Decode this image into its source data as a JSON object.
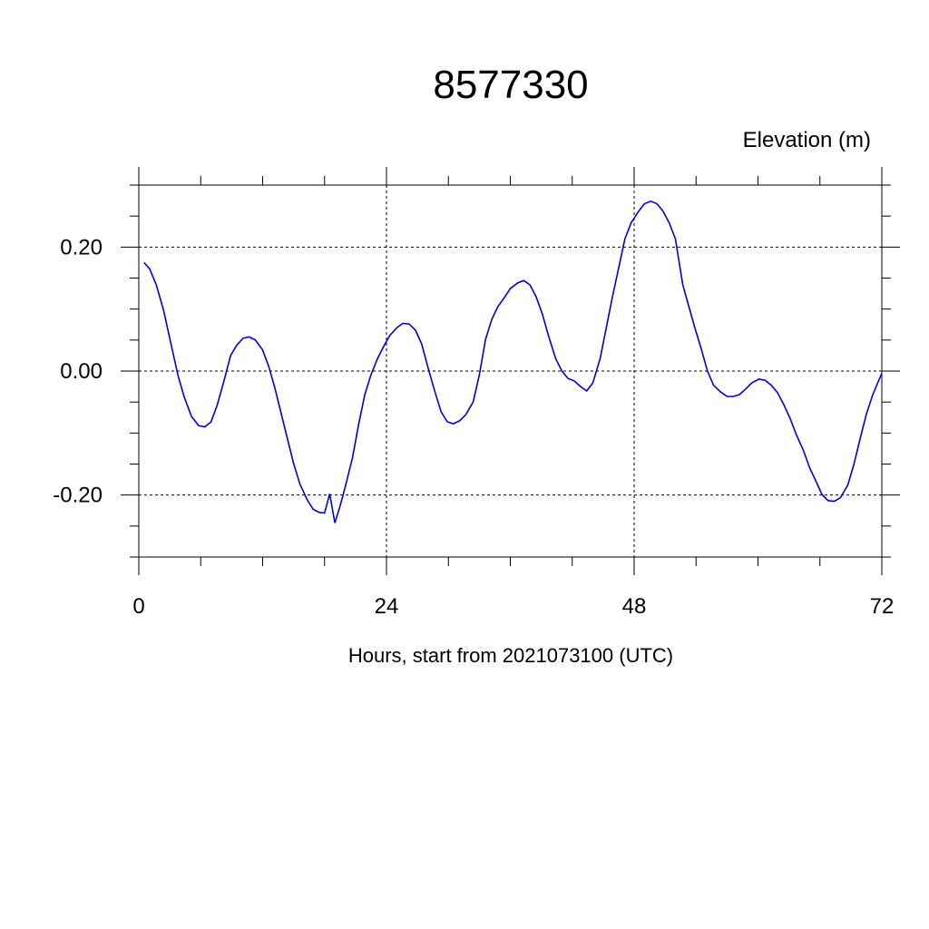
{
  "chart_data": {
    "type": "line",
    "title": "8577330",
    "ylabel": "Elevation (m)",
    "xlabel": "Hours, start from 2021073100 (UTC)",
    "xlim": [
      0,
      72
    ],
    "ylim": [
      -0.3,
      0.3
    ],
    "xticks": [
      0,
      24,
      48,
      72
    ],
    "yticks": [
      {
        "value": -0.2,
        "label": "-0.20"
      },
      {
        "value": 0,
        "label": "0.00"
      },
      {
        "value": 0.2,
        "label": "0.20"
      }
    ],
    "xminorticks": [
      6,
      12,
      18,
      30,
      36,
      42,
      54,
      60,
      66
    ],
    "yminorticks": [
      -0.3,
      -0.25,
      -0.15,
      -0.1,
      -0.05,
      0.05,
      0.1,
      0.15,
      0.25,
      0.3
    ],
    "grid": true,
    "series": [
      {
        "name": "Elevation",
        "color": "#0000e0",
        "x": [
          0.5,
          1.05,
          1.7,
          2.4,
          3.1,
          3.8,
          4.4,
          5.1,
          5.8,
          6.4,
          7.0,
          7.6,
          8.3,
          8.9,
          9.5,
          10.1,
          10.7,
          11.3,
          12.0,
          12.6,
          13.2,
          13.8,
          14.4,
          15.0,
          15.6,
          16.3,
          16.9,
          17.5,
          18.0,
          18.5,
          19.0,
          19.5,
          20.0,
          20.7,
          21.3,
          21.9,
          22.5,
          23.1,
          23.7,
          24.3,
          25.0,
          25.6,
          26.2,
          26.8,
          27.4,
          28.0,
          28.7,
          29.3,
          29.9,
          30.5,
          31.1,
          31.7,
          32.4,
          33.0,
          33.6,
          34.2,
          34.8,
          35.4,
          36.0,
          36.7,
          37.3,
          37.9,
          38.5,
          39.1,
          39.7,
          40.4,
          41.0,
          41.6,
          42.2,
          42.8,
          43.4,
          44.0,
          44.7,
          45.3,
          45.9,
          46.5,
          47.1,
          47.7,
          48.4,
          49.0,
          49.6,
          50.2,
          50.8,
          51.4,
          52.0,
          52.7,
          53.3,
          53.9,
          54.5,
          55.1,
          55.7,
          56.4,
          57.0,
          57.6,
          58.2,
          58.8,
          59.4,
          60.1,
          60.7,
          61.3,
          61.9,
          62.5,
          63.1,
          63.7,
          64.4,
          65.0,
          65.6,
          66.2,
          66.8,
          67.4,
          68.0,
          68.7,
          69.3,
          69.9,
          70.5,
          71.1,
          71.7,
          72.0
        ],
        "values": [
          0.175,
          0.165,
          0.139,
          0.098,
          0.045,
          -0.007,
          -0.042,
          -0.073,
          -0.088,
          -0.09,
          -0.082,
          -0.055,
          -0.013,
          0.025,
          0.042,
          0.053,
          0.055,
          0.05,
          0.034,
          0.007,
          -0.028,
          -0.069,
          -0.109,
          -0.149,
          -0.182,
          -0.207,
          -0.223,
          -0.228,
          -0.229,
          -0.198,
          -0.245,
          -0.218,
          -0.187,
          -0.14,
          -0.086,
          -0.038,
          -0.006,
          0.019,
          0.039,
          0.057,
          0.07,
          0.077,
          0.076,
          0.066,
          0.044,
          0.007,
          -0.034,
          -0.066,
          -0.082,
          -0.085,
          -0.08,
          -0.07,
          -0.05,
          -0.006,
          0.051,
          0.083,
          0.104,
          0.118,
          0.133,
          0.142,
          0.146,
          0.139,
          0.12,
          0.092,
          0.057,
          0.02,
          0.0,
          -0.012,
          -0.016,
          -0.025,
          -0.032,
          -0.019,
          0.02,
          0.07,
          0.12,
          0.166,
          0.213,
          0.239,
          0.257,
          0.27,
          0.274,
          0.27,
          0.258,
          0.239,
          0.213,
          0.14,
          0.104,
          0.069,
          0.036,
          0.0,
          -0.023,
          -0.034,
          -0.041,
          -0.041,
          -0.038,
          -0.029,
          -0.019,
          -0.013,
          -0.015,
          -0.023,
          -0.035,
          -0.054,
          -0.076,
          -0.102,
          -0.128,
          -0.156,
          -0.177,
          -0.199,
          -0.209,
          -0.21,
          -0.204,
          -0.184,
          -0.15,
          -0.109,
          -0.07,
          -0.039,
          -0.015,
          -0.004
        ]
      }
    ]
  }
}
